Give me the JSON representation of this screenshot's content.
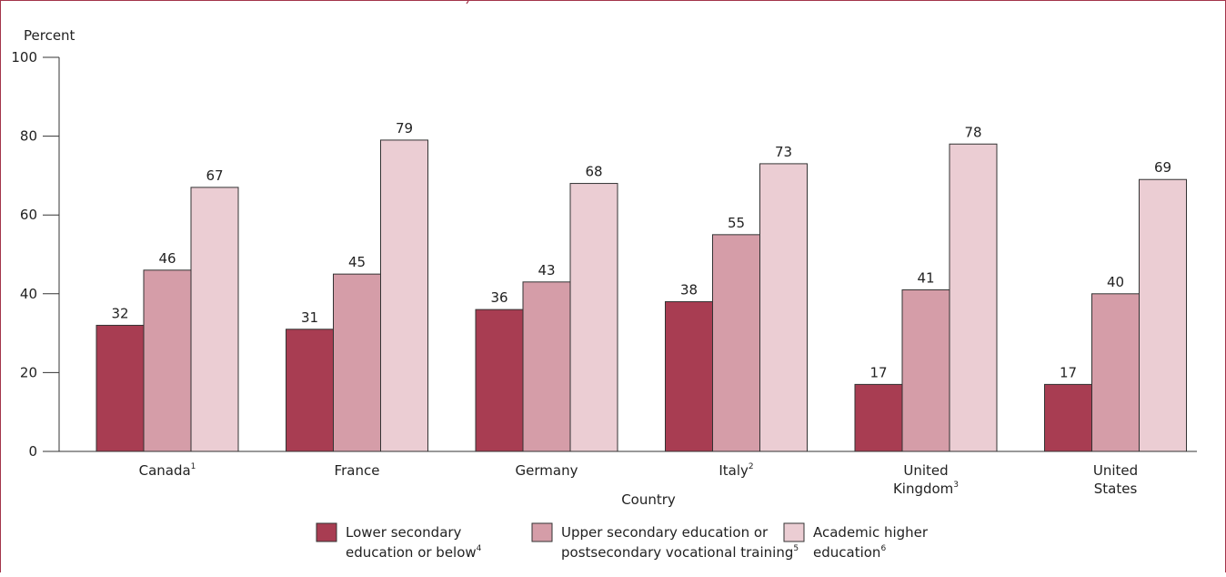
{
  "chart_data": {
    "type": "bar",
    "ylabel": "Percent",
    "xlabel": "Country",
    "ylim": [
      0,
      100
    ],
    "yticks": [
      0,
      20,
      40,
      60,
      80,
      100
    ],
    "grid": false,
    "legend_position": "bottom",
    "categories": [
      {
        "lines": [
          "Canada"
        ],
        "sup": "1"
      },
      {
        "lines": [
          "France"
        ],
        "sup": ""
      },
      {
        "lines": [
          "Germany"
        ],
        "sup": ""
      },
      {
        "lines": [
          "Italy"
        ],
        "sup": "2"
      },
      {
        "lines": [
          "United",
          "Kingdom"
        ],
        "sup": "3"
      },
      {
        "lines": [
          "United",
          "States"
        ],
        "sup": ""
      }
    ],
    "series": [
      {
        "name": "Lower secondary education or below",
        "legend_lines": [
          "Lower secondary",
          "education or below"
        ],
        "legend_sup": "4",
        "color": "#a83d52",
        "values": [
          32,
          31,
          36,
          38,
          17,
          17
        ]
      },
      {
        "name": "Upper secondary education or postsecondary vocational training",
        "legend_lines": [
          "Upper secondary education or",
          "postsecondary vocational training"
        ],
        "legend_sup": "5",
        "color": "#d59da8",
        "values": [
          46,
          45,
          43,
          55,
          41,
          40
        ]
      },
      {
        "name": "Academic higher education",
        "legend_lines": [
          "Academic higher",
          "education"
        ],
        "legend_sup": "6",
        "color": "#ebcdd3",
        "values": [
          67,
          79,
          68,
          73,
          78,
          69
        ]
      }
    ]
  }
}
